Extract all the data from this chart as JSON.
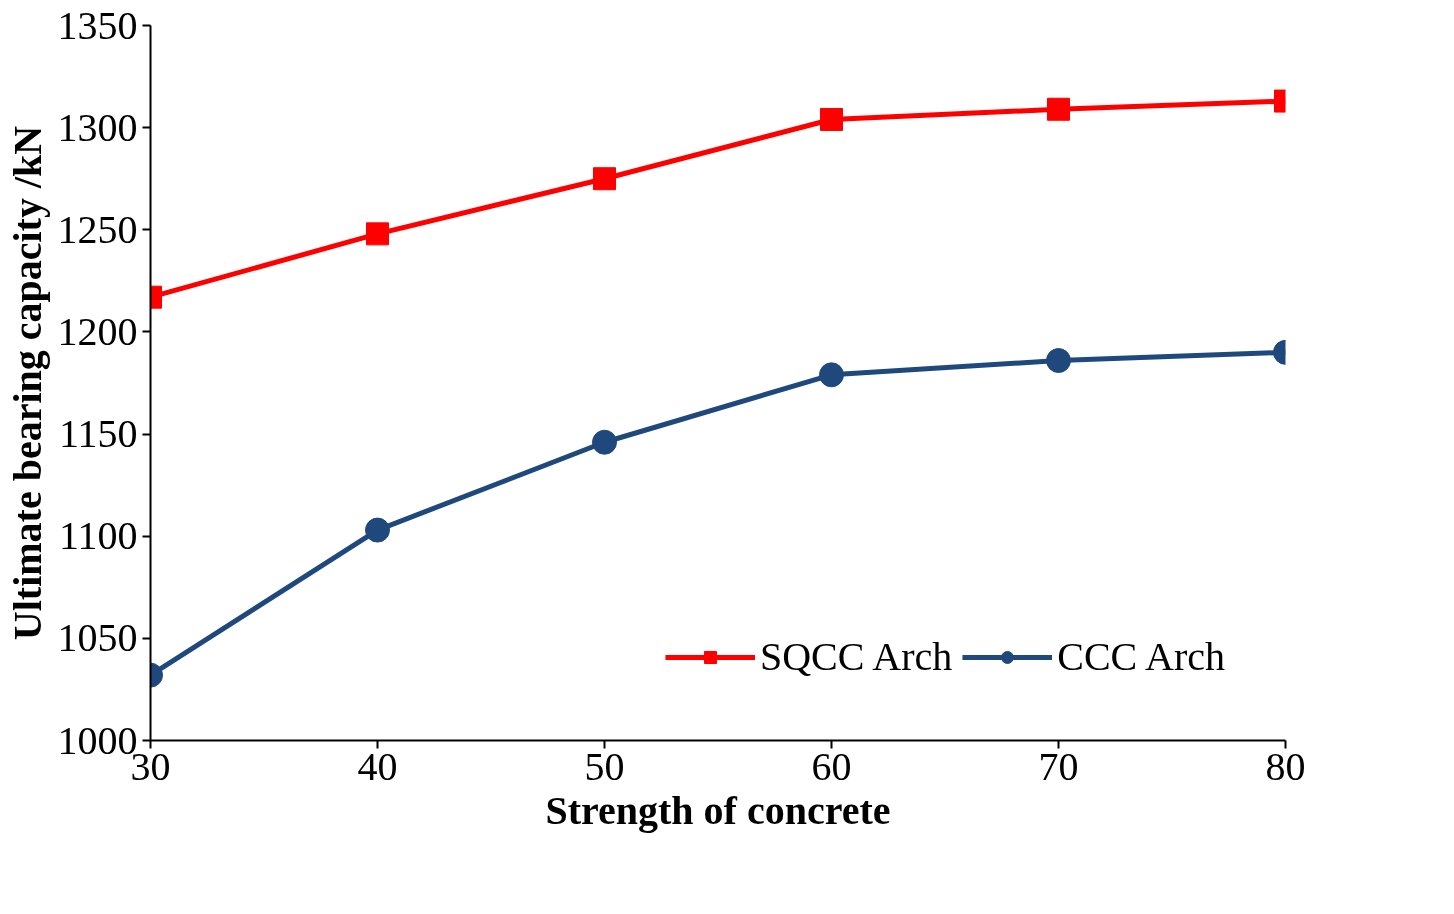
{
  "chart_data": {
    "type": "line",
    "xlabel": "Strength of concrete",
    "ylabel": "Ultimate bearing capacity /kN",
    "x": [
      30,
      40,
      50,
      60,
      70,
      80
    ],
    "series": [
      {
        "name": "SQCC Arch",
        "color": "#ff0000",
        "marker": "square",
        "values": [
          1217,
          1248,
          1275,
          1304,
          1309,
          1313
        ]
      },
      {
        "name": "CCC Arch",
        "color": "#1f497d",
        "marker": "circle",
        "values": [
          1032,
          1103,
          1146,
          1179,
          1186,
          1190
        ]
      }
    ],
    "xlim": [
      30,
      80
    ],
    "xticks": [
      30,
      40,
      50,
      60,
      70,
      80
    ],
    "ylim": [
      1000,
      1350
    ],
    "yticks": [
      1000,
      1050,
      1100,
      1150,
      1200,
      1250,
      1300,
      1350
    ],
    "grid": false,
    "legend": "bottom right",
    "line_style": "solid"
  }
}
